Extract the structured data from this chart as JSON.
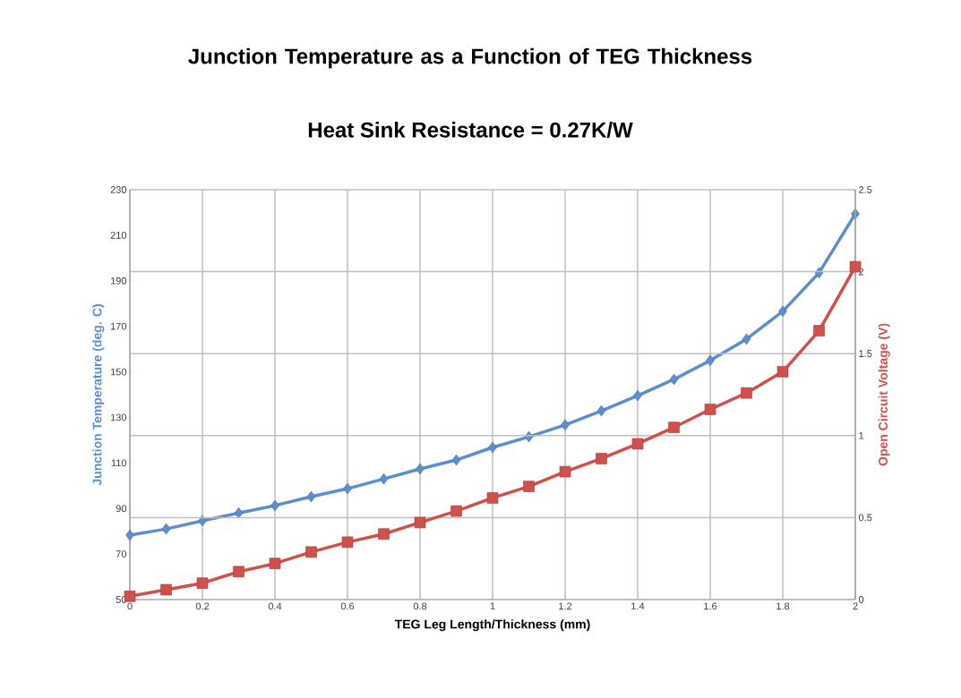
{
  "chart_data": {
    "type": "line",
    "title": "Junction Temperature as a Function of TEG Thickness",
    "subtitle": "Heat Sink Resistance = 0.27K/W",
    "xlabel": "TEG Leg Length/Thickness (mm)",
    "ylabel": "Junction Temperature (deg. C)",
    "y2label": "Open Circuit Voltage (V)",
    "x": [
      0,
      0.1,
      0.2,
      0.3,
      0.4,
      0.5,
      0.6,
      0.7,
      0.8,
      0.9,
      1,
      1.1,
      1.2,
      1.3,
      1.4,
      1.5,
      1.6,
      1.7,
      1.8,
      1.9,
      2
    ],
    "series": [
      {
        "color": "#5b8fd0",
        "marker": "diamond",
        "values": [
          78.3,
          81,
          84.6,
          88,
          91.3,
          95.2,
          98.7,
          103,
          107.4,
          111.3,
          116.8,
          121.5,
          126.7,
          132.9,
          139.6,
          146.7,
          155,
          164.4,
          176.6,
          193.5,
          219.4
        ]
      },
      {
        "color": "#d0504c",
        "marker": "square",
        "axis": "y2",
        "values": [
          0.02,
          0.06,
          0.1,
          0.17,
          0.22,
          0.29,
          0.35,
          0.4,
          0.47,
          0.54,
          0.62,
          0.69,
          0.78,
          0.86,
          0.95,
          1.05,
          1.16,
          1.26,
          1.39,
          1.64,
          2.03
        ]
      }
    ],
    "xlim": [
      0,
      2
    ],
    "xticks": [
      0,
      0.2,
      0.4,
      0.6,
      0.8,
      1,
      1.2,
      1.4,
      1.6,
      1.8,
      2
    ],
    "ylim": [
      50,
      230
    ],
    "yticks": [
      50,
      70,
      90,
      110,
      130,
      150,
      170,
      190,
      210,
      230
    ],
    "y2lim": [
      0,
      2.5
    ],
    "y2ticks": [
      0,
      0.5,
      1,
      1.5,
      2,
      2.5
    ],
    "grid": true,
    "line_style": "solid"
  }
}
